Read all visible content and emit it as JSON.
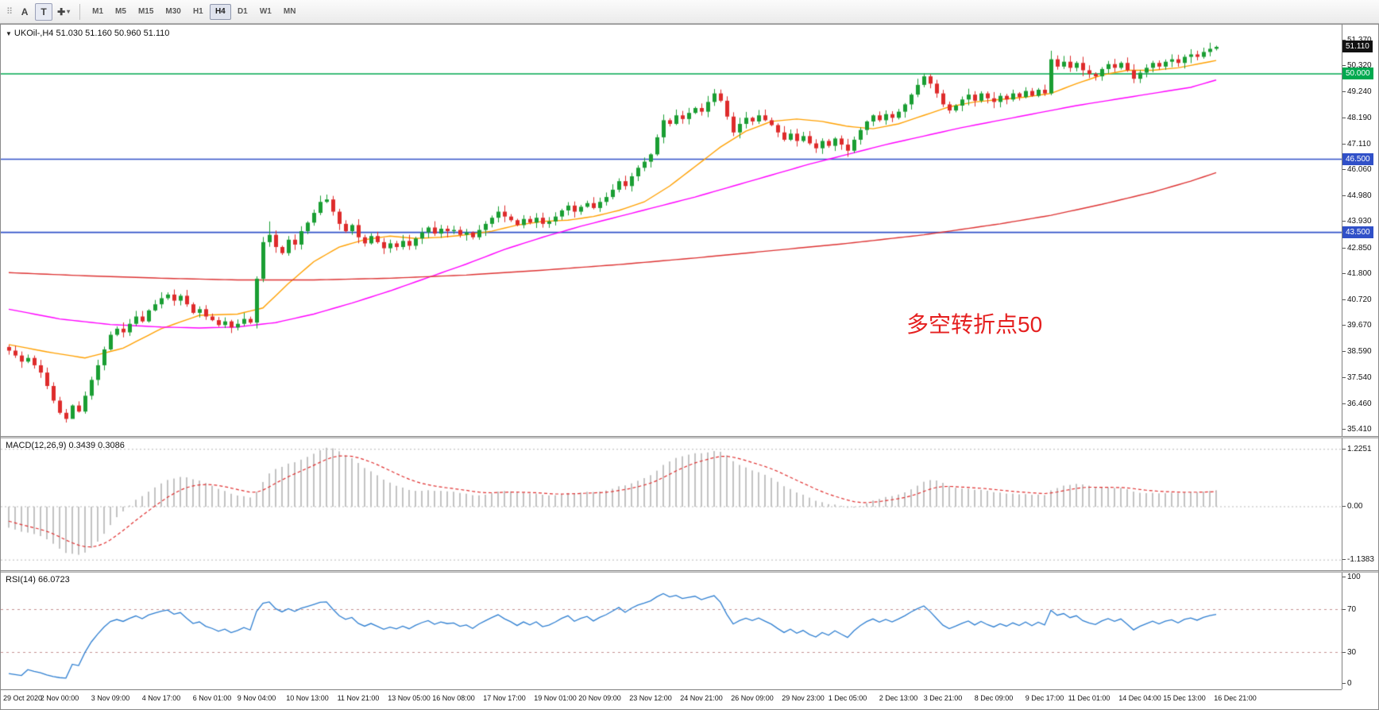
{
  "toolbar": {
    "grip_icon": "⠿",
    "tool_a": "A",
    "tool_t": "T",
    "crosshair_icon": "✚",
    "chevron_icon": "▾",
    "timeframes": [
      "M1",
      "M5",
      "M15",
      "M30",
      "H1",
      "H4",
      "D1",
      "W1",
      "MN"
    ],
    "active_timeframe": "H4"
  },
  "chart_data": {
    "type": "candlestick",
    "title": "UKOil-,H4  51.030 51.160 50.960 51.110",
    "collapse_icon": "▼",
    "symbol": "UKOil-",
    "timeframe": "H4",
    "ohlc": {
      "open": "51.030",
      "high": "51.160",
      "low": "50.960",
      "close": "51.110"
    },
    "annotation": {
      "text": "多空转折点50",
      "color": "#e51f1f"
    },
    "price_min": 35.41,
    "price_max": 51.37,
    "first_open": 38.8,
    "pre_closes": [
      40.6,
      40.45,
      40.2,
      40.3,
      40.05,
      39.85,
      39.9,
      39.65,
      39.45,
      39.55,
      39.3,
      39.1,
      38.95,
      38.8
    ],
    "closes": [
      38.65,
      38.45,
      38.2,
      38.35,
      38.05,
      37.75,
      37.2,
      36.6,
      36.1,
      35.85,
      36.4,
      36.15,
      36.8,
      37.45,
      38.05,
      38.7,
      39.3,
      39.55,
      39.4,
      39.75,
      40.05,
      39.85,
      40.3,
      40.55,
      40.8,
      40.95,
      40.7,
      40.9,
      40.55,
      40.2,
      40.35,
      40.05,
      39.9,
      39.7,
      39.85,
      39.6,
      39.75,
      39.95,
      39.8,
      41.6,
      43.1,
      43.4,
      42.9,
      42.65,
      43.2,
      43.0,
      43.55,
      43.9,
      44.3,
      44.75,
      44.85,
      44.35,
      43.85,
      43.55,
      43.8,
      43.3,
      43.05,
      43.35,
      43.1,
      42.85,
      43.05,
      42.9,
      43.15,
      42.95,
      43.25,
      43.5,
      43.7,
      43.45,
      43.65,
      43.55,
      43.6,
      43.4,
      43.5,
      43.3,
      43.6,
      43.85,
      44.1,
      44.35,
      44.15,
      44.0,
      43.8,
      44.05,
      43.9,
      44.1,
      43.85,
      43.95,
      44.15,
      44.4,
      44.6,
      44.35,
      44.55,
      44.7,
      44.5,
      44.75,
      44.95,
      45.25,
      45.6,
      45.4,
      45.8,
      46.15,
      46.4,
      46.7,
      47.4,
      48.1,
      47.95,
      48.3,
      48.15,
      48.4,
      48.6,
      48.45,
      48.85,
      49.2,
      48.9,
      48.25,
      47.6,
      47.95,
      48.2,
      48.05,
      48.3,
      48.1,
      47.9,
      47.6,
      47.3,
      47.55,
      47.25,
      47.45,
      47.15,
      46.95,
      47.25,
      47.05,
      47.35,
      47.1,
      46.85,
      47.3,
      47.7,
      48.05,
      48.3,
      48.1,
      48.35,
      48.2,
      48.45,
      48.75,
      49.15,
      49.55,
      49.9,
      49.6,
      49.2,
      48.75,
      48.5,
      48.7,
      48.95,
      49.15,
      48.9,
      49.2,
      49.0,
      48.85,
      49.1,
      48.95,
      49.2,
      49.05,
      49.3,
      49.1,
      49.35,
      49.2,
      50.6,
      50.3,
      50.5,
      50.25,
      50.45,
      50.15,
      50.0,
      49.9,
      50.2,
      50.4,
      50.25,
      50.45,
      50.15,
      49.8,
      50.05,
      50.25,
      50.45,
      50.3,
      50.5,
      50.6,
      50.45,
      50.7,
      50.8,
      50.7,
      50.9,
      51.03,
      51.11
    ],
    "high_overrides": {
      "41": 43.95,
      "50": 45.05,
      "111": 49.38,
      "144": 50.02,
      "164": 50.95,
      "189": 51.28,
      "190": 51.16
    },
    "low_overrides": {
      "9": 35.7,
      "10": 35.98,
      "132": 46.6,
      "177": 49.62,
      "190": 50.96
    },
    "hlines": [
      {
        "price": 50.0,
        "color": "#00A94F"
      },
      {
        "price": 46.5,
        "color": "#3050C8"
      },
      {
        "price": 43.5,
        "color": "#3050C8"
      }
    ],
    "price_axis": [
      "51.370",
      "50.320",
      "49.240",
      "48.190",
      "47.110",
      "46.060",
      "44.980",
      "43.930",
      "42.850",
      "41.800",
      "40.720",
      "39.670",
      "38.590",
      "37.540",
      "36.460",
      "35.410"
    ],
    "price_badges": [
      {
        "label": "51.110",
        "price": 51.11,
        "bg": "#111111",
        "kind": "current"
      },
      {
        "label": "50.000",
        "price": 50.0,
        "bg": "#00A94F",
        "kind": "level"
      },
      {
        "label": "46.500",
        "price": 46.5,
        "bg": "#3050C8",
        "kind": "level"
      },
      {
        "label": "43.500",
        "price": 43.5,
        "bg": "#3050C8",
        "kind": "level"
      }
    ],
    "ma_lines": [
      {
        "name": "ma-fast-orange",
        "color": "#FFA000",
        "anchors": [
          [
            0,
            38.9
          ],
          [
            6,
            38.6
          ],
          [
            12,
            38.35
          ],
          [
            18,
            38.75
          ],
          [
            24,
            39.55
          ],
          [
            30,
            40.1
          ],
          [
            36,
            40.15
          ],
          [
            40,
            40.4
          ],
          [
            44,
            41.4
          ],
          [
            48,
            42.3
          ],
          [
            52,
            42.9
          ],
          [
            56,
            43.2
          ],
          [
            60,
            43.35
          ],
          [
            64,
            43.25
          ],
          [
            68,
            43.3
          ],
          [
            72,
            43.4
          ],
          [
            76,
            43.55
          ],
          [
            80,
            43.8
          ],
          [
            84,
            43.95
          ],
          [
            88,
            44.0
          ],
          [
            92,
            44.15
          ],
          [
            96,
            44.4
          ],
          [
            100,
            44.75
          ],
          [
            104,
            45.4
          ],
          [
            108,
            46.2
          ],
          [
            112,
            47.0
          ],
          [
            116,
            47.65
          ],
          [
            120,
            48.05
          ],
          [
            124,
            48.15
          ],
          [
            128,
            48.05
          ],
          [
            132,
            47.85
          ],
          [
            136,
            47.75
          ],
          [
            140,
            47.95
          ],
          [
            144,
            48.3
          ],
          [
            148,
            48.65
          ],
          [
            152,
            48.85
          ],
          [
            156,
            48.95
          ],
          [
            160,
            49.05
          ],
          [
            164,
            49.2
          ],
          [
            168,
            49.6
          ],
          [
            172,
            49.95
          ],
          [
            176,
            50.15
          ],
          [
            180,
            50.15
          ],
          [
            184,
            50.25
          ],
          [
            188,
            50.45
          ],
          [
            190,
            50.55
          ]
        ]
      },
      {
        "name": "ma-mid-magenta",
        "color": "#FF00FF",
        "anchors": [
          [
            0,
            40.35
          ],
          [
            8,
            39.95
          ],
          [
            16,
            39.72
          ],
          [
            24,
            39.62
          ],
          [
            30,
            39.58
          ],
          [
            36,
            39.62
          ],
          [
            42,
            39.8
          ],
          [
            48,
            40.15
          ],
          [
            54,
            40.6
          ],
          [
            60,
            41.1
          ],
          [
            66,
            41.65
          ],
          [
            72,
            42.2
          ],
          [
            78,
            42.8
          ],
          [
            84,
            43.3
          ],
          [
            90,
            43.75
          ],
          [
            96,
            44.15
          ],
          [
            102,
            44.55
          ],
          [
            108,
            44.95
          ],
          [
            114,
            45.4
          ],
          [
            120,
            45.85
          ],
          [
            126,
            46.3
          ],
          [
            132,
            46.7
          ],
          [
            138,
            47.1
          ],
          [
            144,
            47.45
          ],
          [
            150,
            47.8
          ],
          [
            156,
            48.1
          ],
          [
            162,
            48.4
          ],
          [
            168,
            48.7
          ],
          [
            174,
            48.95
          ],
          [
            180,
            49.2
          ],
          [
            186,
            49.45
          ],
          [
            190,
            49.75
          ]
        ]
      },
      {
        "name": "ma-slow-red",
        "color": "#DD3333",
        "anchors": [
          [
            0,
            41.85
          ],
          [
            12,
            41.72
          ],
          [
            24,
            41.62
          ],
          [
            36,
            41.55
          ],
          [
            48,
            41.55
          ],
          [
            60,
            41.62
          ],
          [
            72,
            41.75
          ],
          [
            84,
            41.95
          ],
          [
            96,
            42.18
          ],
          [
            108,
            42.45
          ],
          [
            120,
            42.75
          ],
          [
            132,
            43.05
          ],
          [
            144,
            43.4
          ],
          [
            156,
            43.85
          ],
          [
            164,
            44.2
          ],
          [
            172,
            44.65
          ],
          [
            180,
            45.15
          ],
          [
            186,
            45.6
          ],
          [
            190,
            45.95
          ]
        ]
      }
    ],
    "colors": {
      "up": "#1A9E33",
      "down": "#DE2B2B",
      "hist": "#C2C2C2",
      "signal": "#E03030",
      "rsi": "#2F7FD1",
      "rsi_levels": "#C59090",
      "grid_dash": "#B8B8B8"
    },
    "macd": {
      "title": "MACD(12,26,9) 0.3439 0.3086",
      "axis": [
        {
          "label": "1.2251",
          "v": 1.2251
        },
        {
          "label": "0.00",
          "v": 0
        },
        {
          "label": "-1.1383",
          "v": -1.1383
        }
      ]
    },
    "rsi": {
      "title": "RSI(14) 66.0723",
      "axis": [
        {
          "label": "100",
          "v": 100
        },
        {
          "label": "70",
          "v": 70
        },
        {
          "label": "30",
          "v": 30
        },
        {
          "label": "0",
          "v": 0
        }
      ],
      "levels": [
        70,
        30
      ]
    },
    "time_axis": [
      {
        "t": "29 Oct 2020",
        "i": 0
      },
      {
        "t": "2 Nov 00:00",
        "i": 8
      },
      {
        "t": "3 Nov 09:00",
        "i": 16
      },
      {
        "t": "4 Nov 17:00",
        "i": 24
      },
      {
        "t": "6 Nov 01:00",
        "i": 32
      },
      {
        "t": "9 Nov 04:00",
        "i": 39
      },
      {
        "t": "10 Nov 13:00",
        "i": 47
      },
      {
        "t": "11 Nov 21:00",
        "i": 55
      },
      {
        "t": "13 Nov 05:00",
        "i": 63
      },
      {
        "t": "16 Nov 08:00",
        "i": 70
      },
      {
        "t": "17 Nov 17:00",
        "i": 78
      },
      {
        "t": "19 Nov 01:00",
        "i": 86
      },
      {
        "t": "20 Nov 09:00",
        "i": 93
      },
      {
        "t": "23 Nov 12:00",
        "i": 101
      },
      {
        "t": "24 Nov 21:00",
        "i": 109
      },
      {
        "t": "26 Nov 09:00",
        "i": 117
      },
      {
        "t": "29 Nov 23:00",
        "i": 125
      },
      {
        "t": "1 Dec 05:00",
        "i": 132
      },
      {
        "t": "2 Dec 13:00",
        "i": 140
      },
      {
        "t": "3 Dec 21:00",
        "i": 147
      },
      {
        "t": "8 Dec 09:00",
        "i": 155
      },
      {
        "t": "9 Dec 17:00",
        "i": 163
      },
      {
        "t": "11 Dec 01:00",
        "i": 170
      },
      {
        "t": "14 Dec 04:00",
        "i": 178
      },
      {
        "t": "15 Dec 13:00",
        "i": 185
      },
      {
        "t": "16 Dec 21:00",
        "i": 193
      }
    ]
  }
}
